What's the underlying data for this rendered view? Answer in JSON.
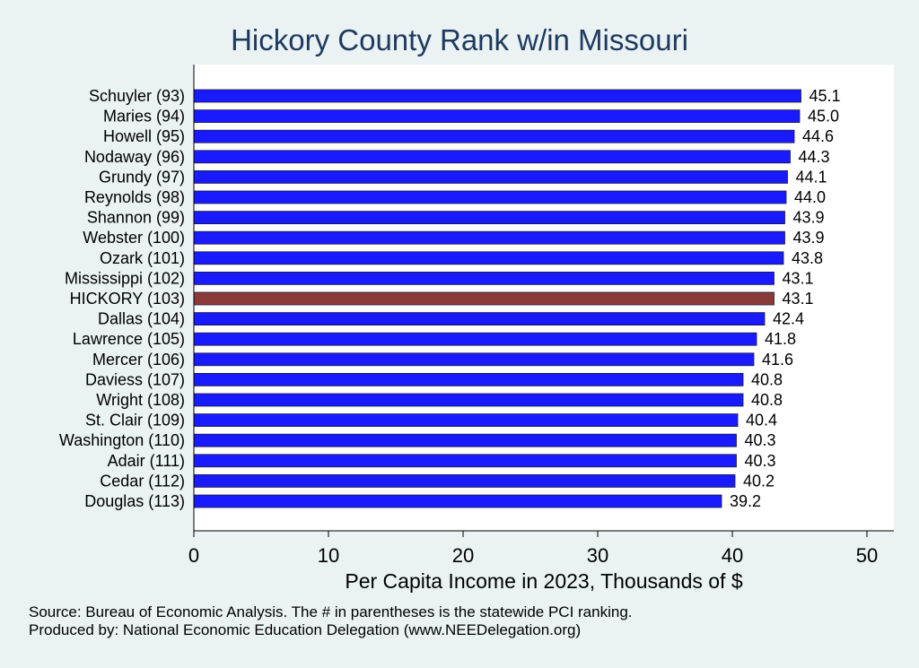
{
  "chart_data": {
    "type": "bar",
    "orientation": "horizontal",
    "title": "Hickory County Rank w/in Missouri",
    "xlabel": "Per Capita Income in 2023, Thousands of $",
    "xlim": [
      0,
      52
    ],
    "xticks": [
      0,
      10,
      20,
      30,
      40,
      50
    ],
    "grid": false,
    "categories": [
      "Schuyler (93)",
      "Maries (94)",
      "Howell (95)",
      "Nodaway (96)",
      "Grundy (97)",
      "Reynolds (98)",
      "Shannon (99)",
      "Webster (100)",
      "Ozark (101)",
      "Mississippi (102)",
      "HICKORY (103)",
      "Dallas (104)",
      "Lawrence (105)",
      "Mercer (106)",
      "Daviess (107)",
      "Wright (108)",
      "St. Clair (109)",
      "Washington (110)",
      "Adair (111)",
      "Cedar (112)",
      "Douglas (113)"
    ],
    "values": [
      45.1,
      45.0,
      44.6,
      44.3,
      44.1,
      44.0,
      43.9,
      43.9,
      43.8,
      43.1,
      43.1,
      42.4,
      41.8,
      41.6,
      40.8,
      40.8,
      40.4,
      40.3,
      40.3,
      40.2,
      39.2
    ],
    "value_labels": [
      "45.1",
      "45.0",
      "44.6",
      "44.3",
      "44.1",
      "44.0",
      "43.9",
      "43.9",
      "43.8",
      "43.1",
      "43.1",
      "42.4",
      "41.8",
      "41.6",
      "40.8",
      "40.8",
      "40.4",
      "40.3",
      "40.3",
      "40.2",
      "39.2"
    ],
    "highlight_index": 10,
    "colors": {
      "bar": "#1a1aff",
      "highlight": "#8b3a3a",
      "background": "#eaf2f3",
      "plot": "#ffffff"
    }
  },
  "footer": {
    "source": "Source: Bureau of Economic Analysis. The # in parentheses is the statewide PCI ranking.",
    "produced_by": "Produced by: National Economic Education Delegation (www.NEEDelegation.org)"
  }
}
